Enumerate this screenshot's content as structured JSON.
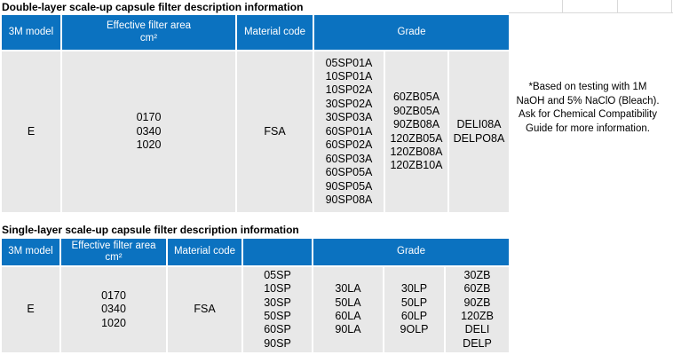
{
  "colors": {
    "header_blue": "#0b72c0",
    "body_gray": "#e8e8e8"
  },
  "note": {
    "lines": [
      "*Based on testing with 1M",
      "NaOH and 5% NaClO (Bleach).",
      "Ask for Chemical Compatibility",
      "Guide for more information."
    ]
  },
  "tables": {
    "double": {
      "title": "Double-layer scale-up capsule filter description information",
      "headers": {
        "model": "3M model",
        "area_line1": "Effective filter area",
        "area_line2": "cm²",
        "material": "Material code",
        "grade": "Grade"
      },
      "row": {
        "model": "E",
        "areas": [
          "0170",
          "0340",
          "1020"
        ],
        "material": "FSA",
        "grade_col1": [
          "05SP01A",
          "10SP01A",
          "10SP02A",
          "30SP02A",
          "30SP03A",
          "60SP01A",
          "60SP02A",
          "60SP03A",
          "60SP05A",
          "90SP05A",
          "90SP08A"
        ],
        "grade_col2": [
          "60ZB05A",
          "90ZB05A",
          "90ZB08A",
          "120ZB05A",
          "120ZB08A",
          "120ZB10A"
        ],
        "grade_col3": [
          "DELI08A",
          "DELPO8A"
        ]
      }
    },
    "single": {
      "title": "Single-layer scale-up capsule filter description information",
      "headers": {
        "model": "3M model",
        "area_line1": "Effective filter area",
        "area_line2": "cm²",
        "material": "Material code",
        "blank": "",
        "grade": "Grade"
      },
      "row": {
        "model": "E",
        "areas": [
          "0170",
          "0340",
          "1020"
        ],
        "material": "FSA",
        "grade_col1": [
          "05SP",
          "10SP",
          "30SP",
          "50SP",
          "60SP",
          "90SP"
        ],
        "grade_col2": [
          "30LA",
          "50LA",
          "60LA",
          "90LA"
        ],
        "grade_col3": [
          "30LP",
          "50LP",
          "60LP",
          "9OLP"
        ],
        "grade_col4": [
          "30ZB",
          "60ZB",
          "90ZB",
          "120ZB",
          "DELI",
          "DELP"
        ]
      }
    }
  }
}
